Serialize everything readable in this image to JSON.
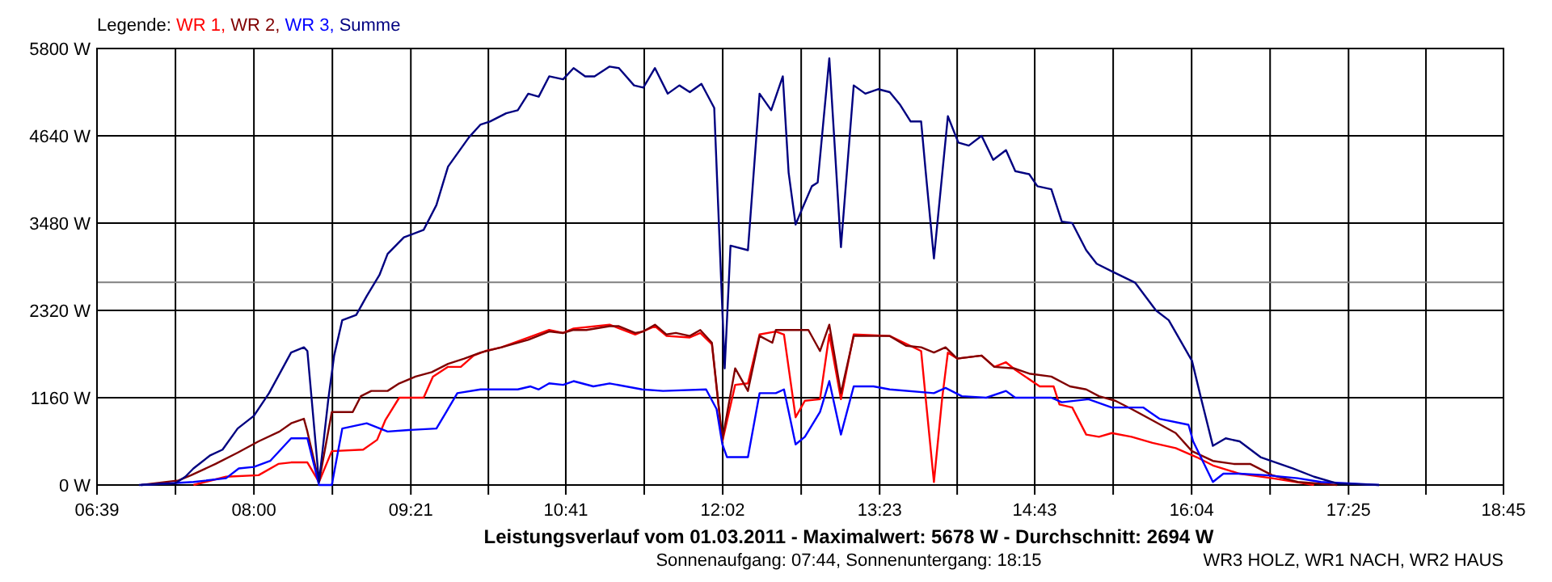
{
  "chart_data": {
    "type": "line",
    "title": "Leistungsverlauf vom 01.03.2011 - Maximalwert: 5678 W - Durchschnitt: 2694 W",
    "subtitle": "Sonnenaufgang: 07:44, Sonnenuntergang: 18:15",
    "annotations": [
      "WR3 HOLZ, WR1 NACH, WR2 HAUS"
    ],
    "legend_title": "Legende:",
    "legend": "top left",
    "grid": true,
    "xlim": [
      6.65,
      18.75
    ],
    "xticks": [
      {
        "value": 6.65,
        "label": "06:39"
      },
      {
        "value": 7.325,
        "label": null
      },
      {
        "value": 8.0,
        "label": "08:00"
      },
      {
        "value": 8.675,
        "label": null
      },
      {
        "value": 9.35,
        "label": "09:21"
      },
      {
        "value": 10.017,
        "label": null
      },
      {
        "value": 10.683,
        "label": "10:41"
      },
      {
        "value": 11.358,
        "label": null
      },
      {
        "value": 12.033,
        "label": "12:02"
      },
      {
        "value": 12.708,
        "label": null
      },
      {
        "value": 13.383,
        "label": "13:23"
      },
      {
        "value": 14.05,
        "label": null
      },
      {
        "value": 14.717,
        "label": "14:43"
      },
      {
        "value": 15.392,
        "label": null
      },
      {
        "value": 16.067,
        "label": "16:04"
      },
      {
        "value": 16.742,
        "label": null
      },
      {
        "value": 17.417,
        "label": "17:25"
      },
      {
        "value": 18.083,
        "label": null
      },
      {
        "value": 18.75,
        "label": "18:45"
      }
    ],
    "ylim": [
      0,
      5800
    ],
    "yticks": [
      {
        "value": 0,
        "label": "0 W"
      },
      {
        "value": 1160,
        "label": "1160 W"
      },
      {
        "value": 2320,
        "label": "2320 W"
      },
      {
        "value": 3480,
        "label": "3480 W"
      },
      {
        "value": 4640,
        "label": "4640 W"
      },
      {
        "value": 5800,
        "label": "5800 W"
      }
    ],
    "ref_lines": [
      {
        "axis": "y",
        "value": 2694,
        "label": null,
        "color": "#808080"
      }
    ],
    "series": [
      {
        "name": "WR 1,",
        "color": "#ff0000",
        "x": [
          7.48,
          7.58,
          7.76,
          8.04,
          8.21,
          8.32,
          8.46,
          8.56,
          8.67,
          8.94,
          9.06,
          9.13,
          9.25,
          9.46,
          9.54,
          9.67,
          9.78,
          9.89,
          9.99,
          10.13,
          10.36,
          10.54,
          10.66,
          10.75,
          11.06,
          11.28,
          11.45,
          11.55,
          11.75,
          11.84,
          11.94,
          12.03,
          12.14,
          12.25,
          12.35,
          12.49,
          12.56,
          12.66,
          12.74,
          12.87,
          12.95,
          13.05,
          13.16,
          13.47,
          13.74,
          13.78,
          13.85,
          13.92,
          13.97,
          14.05,
          14.26,
          14.37,
          14.47,
          14.55,
          14.76,
          14.88,
          14.93,
          15.04,
          15.16,
          15.27,
          15.38,
          15.55,
          15.73,
          15.93,
          16.11,
          16.25,
          16.48,
          16.76,
          17.04,
          17.12
        ],
        "values": [
          0,
          40,
          110,
          130,
          280,
          300,
          300,
          40,
          450,
          470,
          600,
          860,
          1160,
          1160,
          1440,
          1570,
          1570,
          1720,
          1780,
          1830,
          1960,
          2060,
          2020,
          2080,
          2130,
          2000,
          2110,
          1980,
          1960,
          2020,
          1870,
          580,
          1330,
          1350,
          2000,
          2040,
          2000,
          900,
          1120,
          1140,
          2000,
          1140,
          2000,
          1980,
          1780,
          1140,
          40,
          1140,
          1760,
          1680,
          1720,
          1570,
          1630,
          1530,
          1310,
          1310,
          1070,
          1030,
          670,
          640,
          690,
          640,
          560,
          490,
          370,
          260,
          150,
          90,
          20,
          0
        ]
      },
      {
        "name": "WR 2,",
        "color": "#800000",
        "x": [
          7.03,
          7.35,
          7.46,
          7.67,
          7.86,
          8.04,
          8.22,
          8.32,
          8.43,
          8.46,
          8.56,
          8.67,
          8.85,
          8.92,
          9.01,
          9.15,
          9.25,
          9.39,
          9.53,
          9.67,
          9.81,
          9.95,
          10.13,
          10.36,
          10.54,
          10.66,
          10.75,
          10.86,
          11.06,
          11.14,
          11.28,
          11.35,
          11.45,
          11.55,
          11.63,
          11.75,
          11.84,
          11.94,
          12.03,
          12.14,
          12.25,
          12.35,
          12.46,
          12.49,
          12.77,
          12.87,
          12.95,
          13.05,
          13.16,
          13.47,
          13.61,
          13.74,
          13.85,
          13.95,
          14.05,
          14.26,
          14.37,
          14.54,
          14.67,
          14.86,
          15.02,
          15.16,
          15.27,
          15.41,
          15.55,
          15.73,
          15.93,
          16.07,
          16.25,
          16.43,
          16.57,
          16.76,
          16.98,
          17.32
        ],
        "values": [
          0,
          60,
          130,
          280,
          430,
          580,
          710,
          820,
          880,
          710,
          40,
          970,
          970,
          1180,
          1250,
          1250,
          1350,
          1440,
          1500,
          1610,
          1680,
          1760,
          1830,
          1930,
          2040,
          2020,
          2060,
          2060,
          2110,
          2110,
          2020,
          2040,
          2130,
          2000,
          2020,
          1980,
          2060,
          1890,
          600,
          1550,
          1250,
          1980,
          1890,
          2060,
          2060,
          1780,
          2130,
          1220,
          1980,
          1980,
          1850,
          1830,
          1760,
          1830,
          1680,
          1720,
          1570,
          1550,
          1480,
          1440,
          1310,
          1270,
          1180,
          1120,
          1010,
          860,
          690,
          450,
          320,
          280,
          280,
          130,
          40,
          0
        ]
      },
      {
        "name": "WR 3,",
        "color": "#0000ff",
        "x": [
          7.03,
          7.48,
          7.76,
          7.87,
          8.0,
          8.14,
          8.32,
          8.46,
          8.56,
          8.67,
          8.76,
          8.97,
          9.15,
          9.33,
          9.57,
          9.67,
          9.75,
          9.95,
          10.27,
          10.38,
          10.45,
          10.54,
          10.66,
          10.75,
          10.92,
          11.06,
          11.34,
          11.52,
          11.89,
          11.98,
          12.03,
          12.07,
          12.25,
          12.35,
          12.49,
          12.56,
          12.66,
          12.74,
          12.87,
          12.95,
          13.05,
          13.16,
          13.33,
          13.47,
          13.85,
          13.95,
          14.09,
          14.3,
          14.47,
          14.55,
          14.86,
          14.95,
          15.18,
          15.38,
          15.65,
          15.79,
          16.04,
          16.08,
          16.25,
          16.34,
          16.48,
          16.71,
          16.98,
          17.18,
          17.68
        ],
        "values": [
          0,
          40,
          90,
          220,
          240,
          320,
          620,
          620,
          0,
          0,
          750,
          820,
          710,
          730,
          750,
          1010,
          1220,
          1270,
          1270,
          1310,
          1270,
          1350,
          1330,
          1380,
          1310,
          1350,
          1270,
          1250,
          1270,
          1010,
          540,
          370,
          370,
          1220,
          1220,
          1270,
          540,
          640,
          970,
          1380,
          670,
          1310,
          1310,
          1270,
          1220,
          1290,
          1180,
          1160,
          1250,
          1160,
          1160,
          1100,
          1140,
          1030,
          1030,
          880,
          800,
          580,
          40,
          150,
          150,
          130,
          90,
          40,
          0
        ]
      },
      {
        "name": "Summe",
        "color": "#000080",
        "x": [
          7.01,
          7.32,
          7.41,
          7.48,
          7.62,
          7.73,
          7.86,
          8.0,
          8.13,
          8.32,
          8.43,
          8.46,
          8.56,
          8.64,
          8.69,
          8.76,
          8.88,
          8.97,
          9.08,
          9.15,
          9.29,
          9.46,
          9.57,
          9.67,
          9.85,
          9.95,
          10.03,
          10.17,
          10.27,
          10.36,
          10.45,
          10.54,
          10.66,
          10.75,
          10.85,
          10.93,
          11.06,
          11.14,
          11.27,
          11.35,
          11.45,
          11.56,
          11.66,
          11.75,
          11.85,
          11.96,
          12.05,
          12.1,
          12.25,
          12.35,
          12.45,
          12.55,
          12.6,
          12.66,
          12.7,
          12.8,
          12.85,
          12.95,
          13.05,
          13.16,
          13.26,
          13.37,
          13.47,
          13.56,
          13.65,
          13.74,
          13.78,
          13.85,
          13.97,
          14.06,
          14.15,
          14.26,
          14.36,
          14.47,
          14.55,
          14.67,
          14.74,
          14.86,
          14.95,
          15.04,
          15.16,
          15.25,
          15.38,
          15.58,
          15.76,
          15.87,
          16.07,
          16.15,
          16.25,
          16.36,
          16.48,
          16.66,
          16.94,
          17.12,
          17.32,
          17.68
        ],
        "values": [
          0,
          20,
          110,
          220,
          390,
          470,
          750,
          920,
          1220,
          1760,
          1830,
          1780,
          40,
          1140,
          1720,
          2190,
          2260,
          2510,
          2790,
          3070,
          3290,
          3390,
          3720,
          4230,
          4620,
          4790,
          4830,
          4940,
          4980,
          5200,
          5160,
          5430,
          5390,
          5540,
          5430,
          5430,
          5560,
          5540,
          5310,
          5280,
          5540,
          5200,
          5310,
          5220,
          5330,
          5010,
          1550,
          3180,
          3120,
          5200,
          4980,
          5430,
          4150,
          3460,
          3610,
          3970,
          4020,
          5670,
          3160,
          5310,
          5200,
          5260,
          5220,
          5050,
          4830,
          4830,
          4150,
          3010,
          4900,
          4550,
          4510,
          4640,
          4320,
          4450,
          4170,
          4130,
          3970,
          3930,
          3500,
          3480,
          3120,
          2940,
          2840,
          2690,
          2320,
          2190,
          1650,
          1140,
          520,
          620,
          580,
          370,
          220,
          110,
          20,
          0
        ]
      }
    ]
  }
}
